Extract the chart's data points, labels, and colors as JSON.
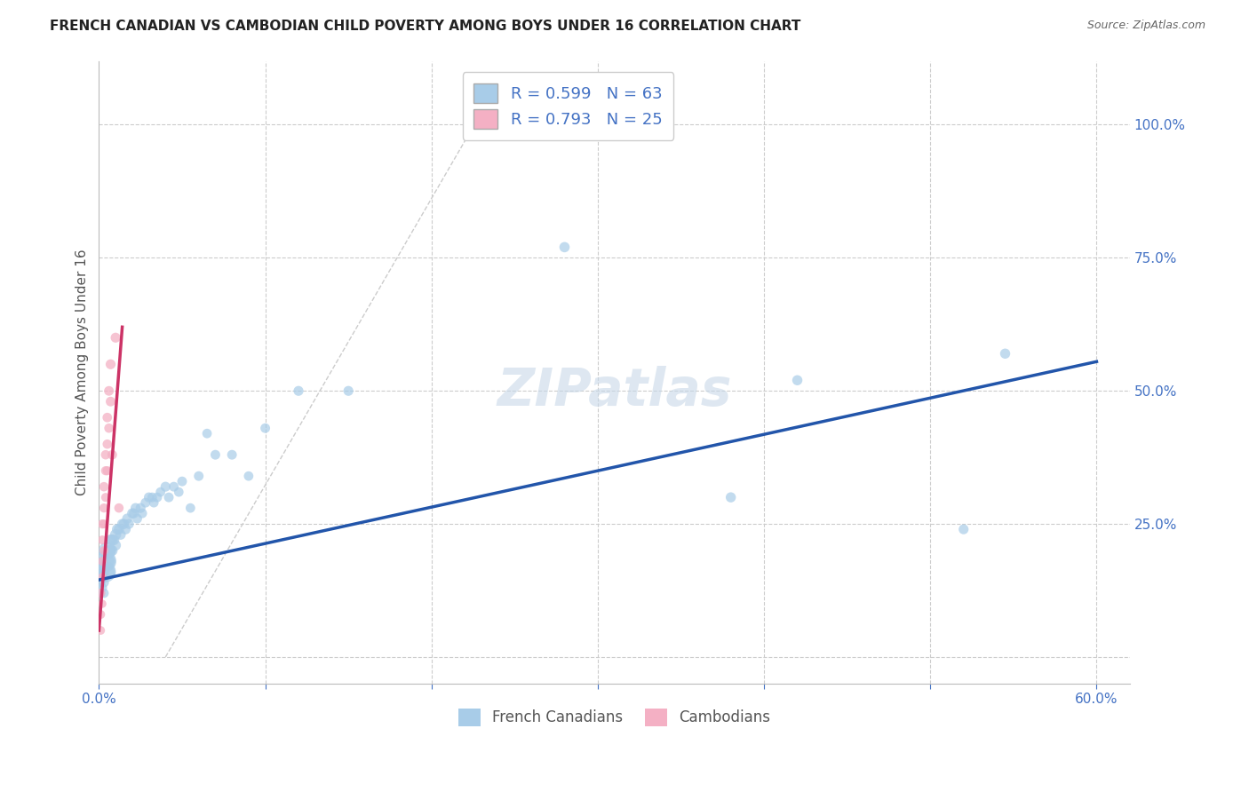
{
  "title": "FRENCH CANADIAN VS CAMBODIAN CHILD POVERTY AMONG BOYS UNDER 16 CORRELATION CHART",
  "source": "Source: ZipAtlas.com",
  "ylabel": "Child Poverty Among Boys Under 16",
  "xlim": [
    0.0,
    0.62
  ],
  "ylim": [
    -0.05,
    1.12
  ],
  "blue_color": "#A8CCE8",
  "pink_color": "#F4B0C4",
  "blue_line_color": "#2255AA",
  "pink_line_color": "#CC3366",
  "diag_color": "#CCCCCC",
  "grid_color": "#CCCCCC",
  "watermark": "ZIPatlas",
  "legend_r1": "R = 0.599",
  "legend_n1": "N = 63",
  "legend_r2": "R = 0.793",
  "legend_n2": "N = 25",
  "tick_color": "#4472C4",
  "axis_label_color": "#555555",
  "french_x": [
    0.001,
    0.001,
    0.002,
    0.002,
    0.002,
    0.003,
    0.003,
    0.003,
    0.003,
    0.003,
    0.004,
    0.004,
    0.005,
    0.005,
    0.005,
    0.006,
    0.006,
    0.007,
    0.007,
    0.008,
    0.008,
    0.009,
    0.01,
    0.01,
    0.011,
    0.012,
    0.013,
    0.014,
    0.015,
    0.016,
    0.017,
    0.018,
    0.02,
    0.021,
    0.022,
    0.023,
    0.025,
    0.026,
    0.028,
    0.03,
    0.032,
    0.033,
    0.035,
    0.037,
    0.04,
    0.042,
    0.045,
    0.048,
    0.05,
    0.055,
    0.06,
    0.065,
    0.07,
    0.08,
    0.09,
    0.1,
    0.12,
    0.15,
    0.28,
    0.38,
    0.42,
    0.52,
    0.545
  ],
  "french_y": [
    0.14,
    0.12,
    0.16,
    0.15,
    0.13,
    0.17,
    0.16,
    0.15,
    0.14,
    0.12,
    0.18,
    0.16,
    0.2,
    0.18,
    0.16,
    0.2,
    0.18,
    0.22,
    0.2,
    0.22,
    0.2,
    0.22,
    0.23,
    0.21,
    0.24,
    0.24,
    0.23,
    0.25,
    0.25,
    0.24,
    0.26,
    0.25,
    0.27,
    0.27,
    0.28,
    0.26,
    0.28,
    0.27,
    0.29,
    0.3,
    0.3,
    0.29,
    0.3,
    0.31,
    0.32,
    0.3,
    0.32,
    0.31,
    0.33,
    0.28,
    0.34,
    0.42,
    0.38,
    0.38,
    0.34,
    0.43,
    0.5,
    0.5,
    0.77,
    0.3,
    0.52,
    0.24,
    0.57
  ],
  "french_size": [
    60,
    55,
    70,
    65,
    60,
    80,
    75,
    70,
    65,
    60,
    300,
    280,
    200,
    180,
    160,
    80,
    75,
    80,
    75,
    80,
    75,
    75,
    80,
    75,
    75,
    70,
    70,
    70,
    70,
    68,
    68,
    65,
    68,
    65,
    65,
    62,
    65,
    62,
    62,
    65,
    62,
    60,
    62,
    60,
    65,
    62,
    62,
    60,
    62,
    60,
    62,
    60,
    62,
    62,
    60,
    62,
    65,
    65,
    70,
    68,
    68,
    65,
    68
  ],
  "cambodian_x": [
    0.001,
    0.001,
    0.001,
    0.002,
    0.002,
    0.002,
    0.002,
    0.002,
    0.003,
    0.003,
    0.003,
    0.003,
    0.004,
    0.004,
    0.004,
    0.005,
    0.005,
    0.005,
    0.006,
    0.006,
    0.007,
    0.007,
    0.008,
    0.01,
    0.012
  ],
  "cambodian_y": [
    0.12,
    0.08,
    0.05,
    0.25,
    0.22,
    0.18,
    0.15,
    0.1,
    0.32,
    0.28,
    0.25,
    0.2,
    0.38,
    0.35,
    0.3,
    0.45,
    0.4,
    0.35,
    0.5,
    0.43,
    0.55,
    0.48,
    0.38,
    0.6,
    0.28
  ],
  "cambodian_size": [
    55,
    52,
    50,
    55,
    52,
    50,
    48,
    45,
    58,
    55,
    52,
    50,
    58,
    55,
    52,
    60,
    58,
    55,
    62,
    58,
    65,
    62,
    60,
    65,
    58
  ],
  "blue_line_x": [
    0.0,
    0.6
  ],
  "blue_line_y": [
    0.145,
    0.555
  ],
  "pink_line_x": [
    0.0,
    0.014
  ],
  "pink_line_y": [
    0.05,
    0.62
  ]
}
